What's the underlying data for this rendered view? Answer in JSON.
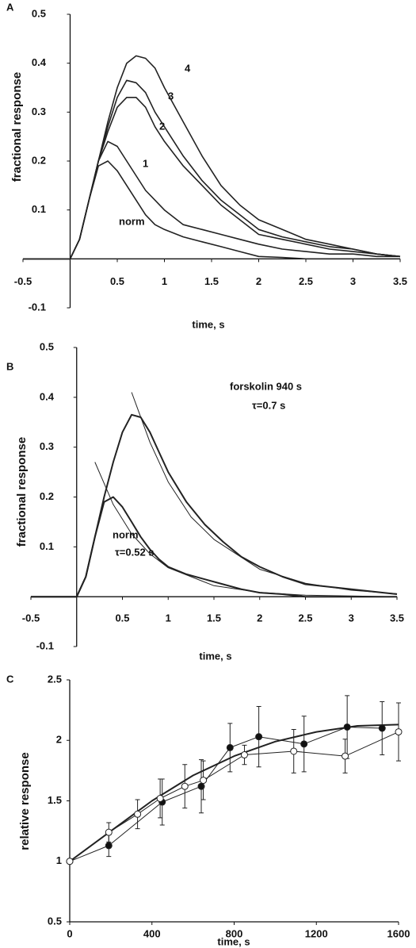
{
  "chart_data": [
    {
      "type": "line",
      "panel": "A",
      "xlabel": "time, s",
      "ylabel": "fractional response",
      "xlim": [
        -0.5,
        3.5
      ],
      "ylim": [
        -0.1,
        0.5
      ],
      "xticks": [
        -0.5,
        0.5,
        1,
        1.5,
        2,
        2.5,
        3,
        3.5
      ],
      "yticks": [
        -0.1,
        0.1,
        0.2,
        0.3,
        0.4,
        0.5
      ],
      "x": [
        -0.5,
        -0.25,
        0,
        0.1,
        0.2,
        0.3,
        0.4,
        0.5,
        0.6,
        0.7,
        0.8,
        0.9,
        1,
        1.2,
        1.4,
        1.6,
        1.8,
        2,
        2.25,
        2.5,
        2.75,
        3,
        3.25,
        3.5
      ],
      "series": [
        {
          "name": "norm",
          "color": "#222222",
          "values": [
            0,
            0,
            0,
            0.04,
            0.12,
            0.19,
            0.2,
            0.18,
            0.15,
            0.12,
            0.09,
            0.07,
            0.06,
            0.045,
            0.035,
            0.025,
            0.015,
            0.005,
            0.003,
            0,
            0,
            0,
            0,
            0
          ]
        },
        {
          "name": "1",
          "color": "#222222",
          "values": [
            0,
            0,
            0,
            0.04,
            0.12,
            0.2,
            0.24,
            0.23,
            0.2,
            0.17,
            0.14,
            0.12,
            0.1,
            0.07,
            0.06,
            0.05,
            0.04,
            0.03,
            0.02,
            0.015,
            0.01,
            0.01,
            0.005,
            0.005
          ]
        },
        {
          "name": "2",
          "color": "#222222",
          "values": [
            0,
            0,
            0,
            0.04,
            0.12,
            0.2,
            0.26,
            0.31,
            0.33,
            0.33,
            0.31,
            0.27,
            0.24,
            0.19,
            0.15,
            0.11,
            0.08,
            0.05,
            0.04,
            0.03,
            0.02,
            0.015,
            0.01,
            0.005
          ]
        },
        {
          "name": "3",
          "color": "#222222",
          "values": [
            0,
            0,
            0,
            0.04,
            0.12,
            0.2,
            0.27,
            0.33,
            0.365,
            0.36,
            0.34,
            0.3,
            0.27,
            0.21,
            0.16,
            0.12,
            0.09,
            0.06,
            0.045,
            0.035,
            0.025,
            0.02,
            0.01,
            0.005
          ]
        },
        {
          "name": "4",
          "color": "#222222",
          "values": [
            0,
            0,
            0,
            0.04,
            0.12,
            0.2,
            0.28,
            0.35,
            0.4,
            0.415,
            0.41,
            0.39,
            0.35,
            0.28,
            0.21,
            0.15,
            0.11,
            0.08,
            0.06,
            0.04,
            0.03,
            0.02,
            0.01,
            0.005
          ]
        }
      ]
    },
    {
      "type": "line",
      "panel": "B",
      "xlabel": "time, s",
      "ylabel": "fractional response",
      "xlim": [
        -0.5,
        3.5
      ],
      "ylim": [
        -0.1,
        0.5
      ],
      "xticks": [
        -0.5,
        0.5,
        1,
        1.5,
        2,
        2.5,
        3,
        3.5
      ],
      "yticks": [
        -0.1,
        0.1,
        0.2,
        0.3,
        0.4,
        0.5
      ],
      "annotations": [
        "τ=0.7 s",
        "τ=0.52 s"
      ],
      "series": [
        {
          "name": "forskolin 940 s",
          "color": "#222222",
          "width": 2,
          "x": [
            -0.5,
            -0.25,
            0,
            0.1,
            0.2,
            0.3,
            0.4,
            0.5,
            0.6,
            0.7,
            0.8,
            0.9,
            1,
            1.2,
            1.4,
            1.6,
            1.8,
            2,
            2.25,
            2.5,
            2.75,
            3,
            3.25,
            3.5
          ],
          "values": [
            0,
            0,
            0,
            0.04,
            0.12,
            0.2,
            0.27,
            0.33,
            0.365,
            0.36,
            0.33,
            0.29,
            0.25,
            0.19,
            0.145,
            0.11,
            0.08,
            0.06,
            0.04,
            0.025,
            0.02,
            0.015,
            0.01,
            0.005
          ]
        },
        {
          "name": "norm",
          "color": "#222222",
          "width": 2,
          "x": [
            -0.5,
            -0.25,
            0,
            0.1,
            0.2,
            0.3,
            0.4,
            0.5,
            0.6,
            0.7,
            0.8,
            0.9,
            1,
            1.2,
            1.4,
            1.6,
            1.8,
            2,
            2.25,
            2.5,
            2.75,
            3,
            3.25,
            3.5
          ],
          "values": [
            0,
            0,
            0,
            0.04,
            0.12,
            0.19,
            0.2,
            0.18,
            0.15,
            0.12,
            0.095,
            0.075,
            0.06,
            0.045,
            0.035,
            0.025,
            0.015,
            0.008,
            0.005,
            0,
            0,
            0,
            0,
            0
          ]
        },
        {
          "color": "#222222",
          "width": 1,
          "x": [
            0.6,
            0.8,
            1,
            1.25,
            1.5,
            2,
            2.5,
            3,
            3.5
          ],
          "values": [
            0.41,
            0.31,
            0.23,
            0.16,
            0.115,
            0.055,
            0.027,
            0.013,
            0.006
          ]
        },
        {
          "color": "#222222",
          "width": 1,
          "x": [
            0.2,
            0.4,
            0.6,
            0.8,
            1,
            1.5,
            2,
            2.5,
            3.5
          ],
          "values": [
            0.27,
            0.185,
            0.126,
            0.086,
            0.058,
            0.022,
            0.0085,
            0.003,
            0
          ]
        }
      ]
    },
    {
      "type": "line",
      "panel": "C",
      "xlabel": "time, s",
      "ylabel": "relative response",
      "xlim": [
        0,
        1600
      ],
      "ylim": [
        0.5,
        2.5
      ],
      "xticks": [
        0,
        400,
        800,
        1200,
        1600
      ],
      "yticks": [
        0.5,
        1,
        1.5,
        2,
        2.5
      ],
      "series": [
        {
          "color": "#222222",
          "width": 2,
          "x": [
            0,
            200,
            400,
            600,
            800,
            1000,
            1200,
            1400,
            1600
          ],
          "values": [
            1,
            1.25,
            1.5,
            1.71,
            1.87,
            1.99,
            2.07,
            2.12,
            2.13
          ]
        },
        {
          "color": "#222222",
          "width": 1,
          "marker_fill": "#111111",
          "x": [
            0,
            190,
            450,
            640,
            780,
            920,
            1140,
            1350,
            1520
          ],
          "values": [
            1,
            1.13,
            1.49,
            1.62,
            1.94,
            2.03,
            1.97,
            2.11,
            2.1
          ],
          "errors": [
            0,
            0.09,
            0.19,
            0.22,
            0.2,
            0.25,
            0.23,
            0.26,
            0.22
          ]
        },
        {
          "color": "#222222",
          "width": 1,
          "marker_fill": "#ffffff",
          "x": [
            0,
            190,
            330,
            440,
            560,
            650,
            850,
            1090,
            1340,
            1600
          ],
          "values": [
            1,
            1.24,
            1.39,
            1.52,
            1.62,
            1.67,
            1.88,
            1.91,
            1.87,
            2.07
          ],
          "errors": [
            0,
            0.08,
            0.12,
            0.16,
            0.18,
            0.16,
            0.08,
            0.18,
            0.14,
            0.24
          ]
        }
      ]
    }
  ]
}
